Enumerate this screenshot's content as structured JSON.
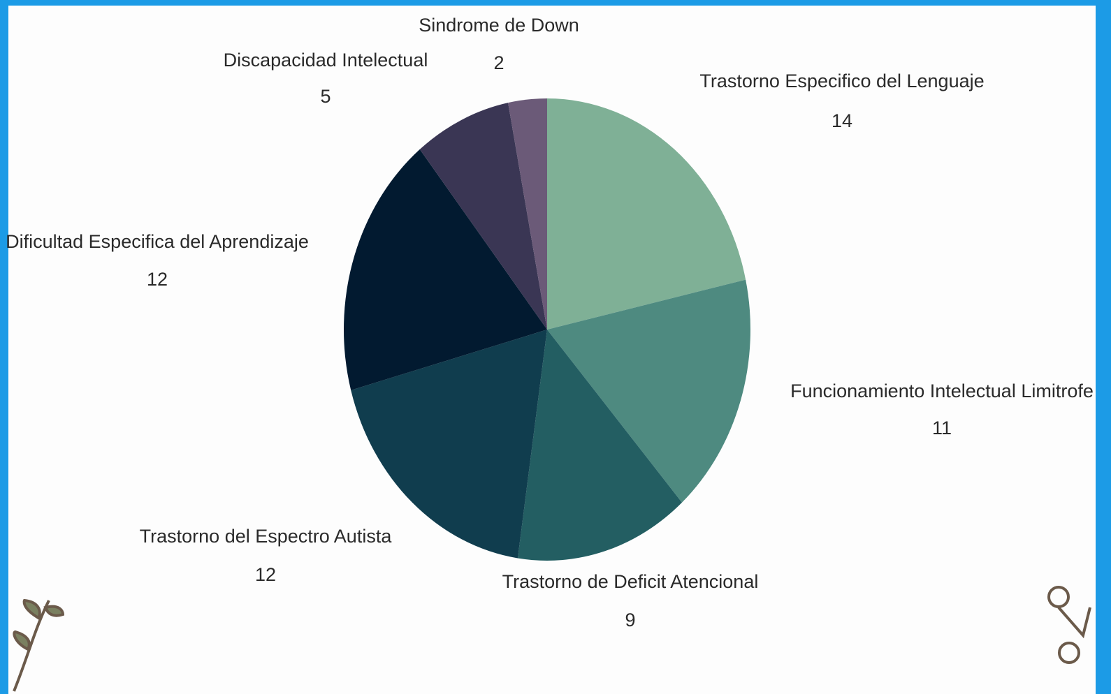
{
  "chart_data": {
    "type": "pie",
    "categories": [
      "Trastorno Especifico del Lenguaje",
      "Funcionamiento Intelectual Limitrofe",
      "Trastorno de Deficit Atencional",
      "Trastorno del Espectro Autista",
      "Dificultad Especifica del Aprendizaje",
      "Discapacidad Intelectual",
      "Sindrome  de Down"
    ],
    "values": [
      14,
      11,
      9,
      12,
      12,
      5,
      2
    ],
    "colors": [
      "#7fb096",
      "#4e8a80",
      "#235e62",
      "#103d4e",
      "#021a30",
      "#3a3654",
      "#6b5a78"
    ]
  }
}
